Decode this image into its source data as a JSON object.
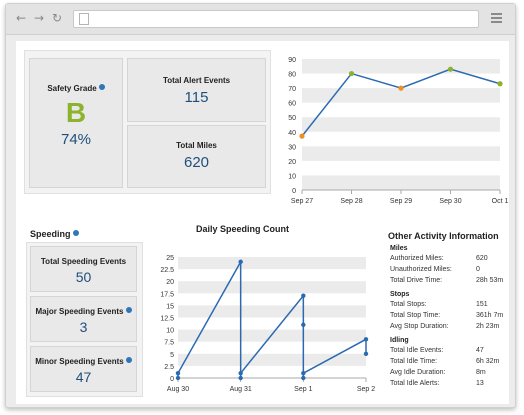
{
  "safety": {
    "label": "Safety Grade",
    "grade": "B",
    "percent": "74%"
  },
  "alerts": {
    "label": "Total Alert Events",
    "value": "115"
  },
  "miles": {
    "label": "Total Miles",
    "value": "620"
  },
  "speeding": {
    "title": "Speeding",
    "cards": [
      {
        "label": "Total Speeding Events",
        "value": "50"
      },
      {
        "label": "Major Speeding Events",
        "value": "3"
      },
      {
        "label": "Minor Speeding Events",
        "value": "47"
      }
    ]
  },
  "daily_chart_title": "Daily Speeding Count",
  "other": {
    "title": "Other Activity Information",
    "sections": [
      {
        "name": "Miles",
        "rows": [
          {
            "label": "Authorized Miles:",
            "value": "620"
          },
          {
            "label": "Unauthorized Miles:",
            "value": "0"
          },
          {
            "label": "Total Drive Time:",
            "value": "28h 53m"
          }
        ]
      },
      {
        "name": "Stops",
        "rows": [
          {
            "label": "Total Stops:",
            "value": "151"
          },
          {
            "label": "Total Stop Time:",
            "value": "361h 7m"
          },
          {
            "label": "Avg Stop Duration:",
            "value": "2h 23m"
          }
        ]
      },
      {
        "name": "Idling",
        "rows": [
          {
            "label": "Total Idle Events:",
            "value": "47"
          },
          {
            "label": "Total Idle Time:",
            "value": "6h 32m"
          },
          {
            "label": "Avg Idle Duration:",
            "value": "8m"
          },
          {
            "label": "Total Idle Alerts:",
            "value": "13"
          }
        ]
      }
    ]
  },
  "colors": {
    "line": "#2a6ab0",
    "grade": "#8db32c",
    "value": "#1f4f7a",
    "orange": "#f0901e",
    "green": "#8db32c"
  },
  "icons": [
    "back-arrow-icon",
    "forward-arrow-icon",
    "reload-icon",
    "document-icon",
    "menu-icon",
    "help-icon"
  ],
  "chart_data": [
    {
      "type": "line",
      "x": [
        "Sep 27",
        "Sep 28",
        "Sep 29",
        "Sep 30",
        "Oct 1"
      ],
      "series": [
        {
          "values": [
            37,
            80,
            70,
            83,
            73
          ]
        }
      ],
      "marker_colors": [
        "orange",
        "green",
        "orange",
        "green",
        "green"
      ],
      "yticks": [
        0,
        10,
        20,
        30,
        40,
        50,
        60,
        70,
        80,
        90
      ],
      "ylim": [
        0,
        90
      ],
      "grid": true
    },
    {
      "type": "line",
      "title": "Daily Speeding Count",
      "x": [
        "Aug 30",
        "Aug 31",
        "Sep 1",
        "Sep 2"
      ],
      "points": [
        [
          0,
          0
        ],
        [
          0,
          1
        ],
        [
          1,
          24
        ],
        [
          1,
          0
        ],
        [
          1,
          1
        ],
        [
          2,
          17
        ],
        [
          2,
          11
        ],
        [
          2,
          0
        ],
        [
          2,
          1
        ],
        [
          3,
          8
        ],
        [
          3,
          5
        ]
      ],
      "yticks": [
        0,
        2.5,
        5,
        7.5,
        10,
        12.5,
        15,
        17.5,
        20,
        22.5,
        25
      ],
      "ytick_labels": [
        "0",
        "2.5",
        "5",
        "7.5",
        "10",
        "12.5",
        "15",
        "17.5",
        "20",
        "22.5",
        "25"
      ],
      "ylim": [
        0,
        25
      ],
      "grid": true
    }
  ]
}
